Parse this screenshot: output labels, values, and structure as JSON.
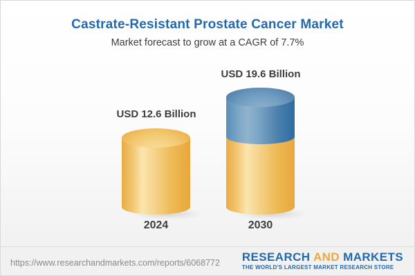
{
  "header": {
    "title": "Castrate-Resistant Prostate Cancer Market",
    "subtitle": "Market forecast to grow at a CAGR of 7.7%"
  },
  "chart_data": {
    "type": "bar",
    "categories": [
      "2024",
      "2030"
    ],
    "values": [
      12.6,
      19.6
    ],
    "unit": "USD Billion",
    "value_labels": [
      "USD 12.6 Billion",
      "USD 19.6 Billion"
    ],
    "cagr_percent": 7.7,
    "title": "Castrate-Resistant Prostate Cancer Market",
    "subtitle": "Market forecast to grow at a CAGR of 7.7%",
    "legend_position": "none",
    "grid": false,
    "bar_style": "3d-cylinder",
    "colors": {
      "base_segment": "#eebb56",
      "growth_segment": "#5d91ba",
      "label_text": "#3d3d3d"
    }
  },
  "footer": {
    "url": "https://www.researchandmarkets.com/reports/6068772",
    "logo": {
      "word1": "RESEARCH",
      "word2": "AND",
      "word3": "MARKETS",
      "tagline": "THE WORLD'S LARGEST MARKET RESEARCH STORE"
    }
  },
  "colors": {
    "title_blue": "#2268ae",
    "logo_gold": "#efa63c",
    "card_border": "#d8d8d8"
  }
}
